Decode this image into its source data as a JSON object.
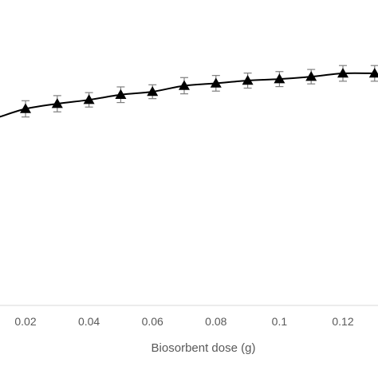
{
  "chart_data": {
    "type": "line",
    "title": "",
    "xlabel": "Biosorbent dose (g)",
    "ylabel": "",
    "xlim": [
      0.012,
      0.131
    ],
    "ylim": [
      0,
      115
    ],
    "x_ticks": [
      0.02,
      0.04,
      0.06,
      0.08,
      0.1,
      0.12
    ],
    "x_tick_labels": [
      "0.02",
      "0.04",
      "0.06",
      "0.08",
      "0.1",
      "0.12"
    ],
    "grid": false,
    "legend": "none",
    "series": [
      {
        "marker": "triangle",
        "color": "#000000",
        "x": [
          0.012,
          0.02,
          0.03,
          0.04,
          0.05,
          0.06,
          0.07,
          0.08,
          0.09,
          0.1,
          0.11,
          0.12,
          0.13
        ],
        "y": [
          88,
          90.6,
          92.3,
          93.6,
          95.3,
          96.3,
          98.3,
          99.1,
          100.0,
          100.5,
          101.3,
          102.4,
          102.4
        ],
        "error": [
          null,
          2.7,
          2.7,
          2.4,
          2.6,
          2.3,
          2.7,
          2.6,
          2.5,
          2.5,
          2.4,
          2.6,
          2.6
        ]
      }
    ]
  }
}
